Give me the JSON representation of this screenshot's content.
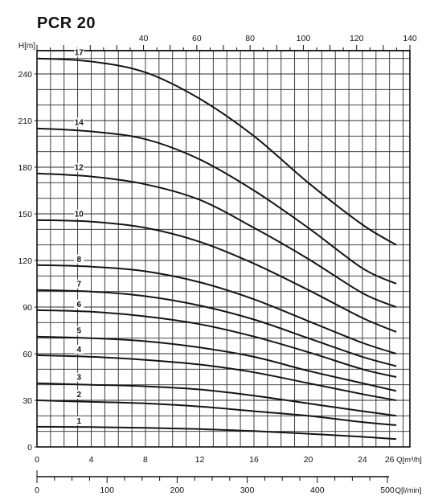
{
  "chart_data": {
    "type": "line",
    "title": "PCR 20",
    "ylabel": "H[m]",
    "xlabel": "Q[m³/h]",
    "xlabel_secondary_bottom": "Q[l/min]",
    "xlabel_secondary_top": "",
    "ylim": [
      0,
      250
    ],
    "xlim": [
      0,
      27.5
    ],
    "y_ticks": [
      "0",
      "30",
      "60",
      "90",
      "120",
      "150",
      "180",
      "210",
      "240"
    ],
    "x_ticks": [
      "0",
      "4",
      "8",
      "12",
      "16",
      "20",
      "24",
      "26"
    ],
    "x_ticks_top": [
      "40",
      "60",
      "80",
      "100",
      "120",
      "140"
    ],
    "x_ticks_lmin": [
      "0",
      "100",
      "200",
      "300",
      "400",
      "500"
    ],
    "grid": true,
    "series": [
      {
        "name": "17",
        "x": [
          0,
          4,
          8,
          12,
          16,
          20,
          24,
          26.5
        ],
        "values": [
          250,
          248,
          241,
          224,
          200,
          170,
          143,
          130
        ]
      },
      {
        "name": "14",
        "x": [
          0,
          4,
          8,
          12,
          16,
          20,
          24,
          26.5
        ],
        "values": [
          205,
          203,
          198,
          185,
          165,
          141,
          115,
          105
        ]
      },
      {
        "name": "12",
        "x": [
          0,
          4,
          8,
          12,
          16,
          20,
          24,
          26.5
        ],
        "values": [
          176,
          174,
          169,
          159,
          141,
          121,
          99,
          90
        ]
      },
      {
        "name": "10",
        "x": [
          0,
          4,
          8,
          12,
          16,
          20,
          24,
          26.5
        ],
        "values": [
          146,
          145,
          141,
          132,
          118,
          101,
          83,
          74
        ]
      },
      {
        "name": "8",
        "x": [
          0,
          4,
          8,
          12,
          16,
          20,
          24,
          26.5
        ],
        "values": [
          117,
          116,
          113,
          106,
          95,
          81,
          67,
          60
        ]
      },
      {
        "name": "7",
        "x": [
          0,
          4,
          8,
          12,
          16,
          20,
          24,
          26.5
        ],
        "values": [
          101,
          100,
          97,
          91,
          82,
          70,
          58,
          52
        ]
      },
      {
        "name": "6",
        "x": [
          0,
          4,
          8,
          12,
          16,
          20,
          24,
          26.5
        ],
        "values": [
          88,
          87,
          84,
          79,
          71,
          61,
          50,
          45
        ]
      },
      {
        "name": "5",
        "x": [
          0,
          4,
          8,
          12,
          16,
          20,
          24,
          26.5
        ],
        "values": [
          71,
          70,
          68,
          64,
          58,
          49,
          41,
          36
        ]
      },
      {
        "name": "4",
        "x": [
          0,
          4,
          8,
          12,
          16,
          20,
          24,
          26.5
        ],
        "values": [
          59,
          58,
          56,
          53,
          48,
          41,
          34,
          30
        ]
      },
      {
        "name": "3",
        "x": [
          0,
          4,
          8,
          12,
          16,
          20,
          24,
          26.5
        ],
        "values": [
          41,
          40,
          39,
          37,
          33,
          28,
          23,
          20
        ]
      },
      {
        "name": "2",
        "x": [
          0,
          4,
          8,
          12,
          16,
          20,
          24,
          26.5
        ],
        "values": [
          30,
          29,
          28,
          26,
          23,
          20,
          16,
          14
        ]
      },
      {
        "name": "1",
        "x": [
          0,
          4,
          8,
          12,
          16,
          20,
          24,
          26.5
        ],
        "values": [
          13,
          12.8,
          12.3,
          11.5,
          10.2,
          8.5,
          6.5,
          5
        ]
      }
    ],
    "colors": {
      "line": "#1a1a1a",
      "grid": "#2a2a2a",
      "background": "#ffffff"
    }
  }
}
